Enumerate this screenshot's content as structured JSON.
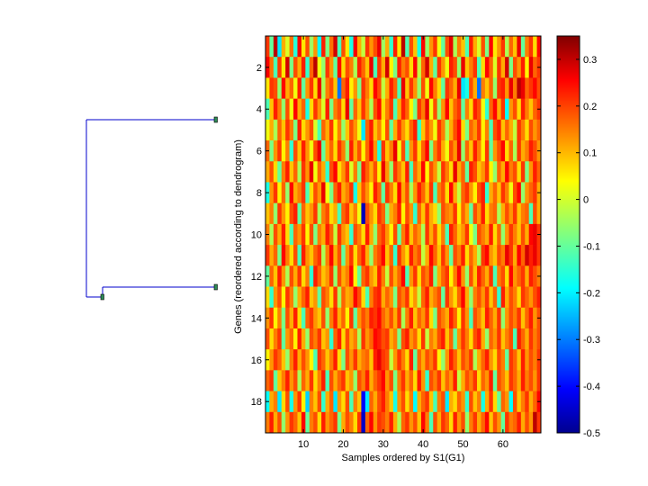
{
  "chart_data": {
    "type": "heatmap",
    "title": "",
    "xlabel": "Samples ordered by S1(G1)",
    "ylabel": "Genes (reordered according to dendrogram)",
    "n_cols": 69,
    "n_rows": 19,
    "xlim": [
      0.5,
      69.5
    ],
    "ylim": [
      0.5,
      19.5
    ],
    "xticks": [
      10,
      20,
      30,
      40,
      50,
      60
    ],
    "yticks": [
      2,
      4,
      6,
      8,
      10,
      12,
      14,
      16,
      18
    ],
    "colormap": "jet",
    "colorbar": {
      "range": [
        -0.5,
        0.35
      ],
      "ticks": [
        0.3,
        0.2,
        0.1,
        0,
        -0.1,
        -0.2,
        -0.3,
        -0.4,
        -0.5
      ]
    },
    "values": [
      [
        0.2,
        -0.1,
        0.3,
        -0.2,
        0.1,
        0.0,
        0.15,
        -0.15,
        0.25,
        0.05,
        0.18,
        -0.05,
        0.12,
        -0.18,
        0.22,
        -0.08,
        0.15,
        0.28,
        -0.12,
        0.18,
        0.05,
        -0.16,
        0.25,
        0.1,
        -0.02,
        0.2,
        0.12,
        0.18,
        0.26,
        -0.05,
        0.1,
        -0.14,
        0.22,
        0.05,
        0.3,
        -0.12,
        0.18,
        0.08,
        -0.16,
        0.24,
        -0.06,
        0.12,
        0.2,
        0.02,
        -0.1,
        0.18,
        0.26,
        -0.04,
        0.14,
        0.08,
        -0.12,
        0.22,
        0.1,
        0.0,
        0.18,
        -0.08,
        0.24,
        0.05,
        0.12,
        0.2,
        -0.04,
        0.16,
        0.08,
        0.26,
        -0.1,
        0.14,
        0.2,
        0.06,
        0.24
      ],
      [
        0.25,
        0.15,
        -0.12,
        0.2,
        0.05,
        0.28,
        -0.08,
        0.18,
        0.1,
        0.22,
        -0.14,
        0.16,
        0.3,
        0.02,
        -0.06,
        0.2,
        0.12,
        -0.1,
        0.24,
        0.06,
        0.18,
        0.14,
        -0.04,
        0.22,
        0.16,
        0.08,
        0.26,
        -0.12,
        0.2,
        0.1,
        0.28,
        0.04,
        -0.08,
        0.22,
        0.14,
        0.18,
        0.06,
        0.24,
        -0.02,
        0.16,
        0.28,
        0.1,
        -0.1,
        0.2,
        0.12,
        0.02,
        0.22,
        0.18,
        -0.06,
        0.26,
        0.08,
        0.14,
        0.2,
        -0.12,
        0.06,
        0.24,
        0.16,
        0.0,
        0.2,
        0.1,
        0.28,
        -0.08,
        0.18,
        0.12,
        0.22,
        0.04,
        0.26,
        0.16,
        0.2
      ],
      [
        0.05,
        0.2,
        0.18,
        -0.06,
        0.24,
        0.1,
        0.16,
        0.02,
        0.22,
        -0.1,
        0.12,
        0.2,
        0.06,
        0.26,
        -0.04,
        0.14,
        0.18,
        0.08,
        -0.3,
        0.16,
        0.22,
        0.04,
        0.12,
        -0.08,
        0.2,
        0.14,
        0.06,
        0.24,
        0.18,
        -0.02,
        0.1,
        0.22,
        0.16,
        -0.12,
        0.26,
        0.08,
        0.2,
        0.12,
        -0.06,
        0.18,
        0.02,
        0.24,
        0.14,
        0.06,
        -0.1,
        0.2,
        0.16,
        0.1,
        0.26,
        -0.2,
        -0.16,
        0.18,
        0.1,
        -0.3,
        0.14,
        0.08,
        0.16,
        -0.06,
        0.2,
        0.22,
        0.12,
        0.26,
        0.14,
        0.3,
        0.26,
        0.16,
        0.2,
        0.24,
        0.18
      ],
      [
        -0.12,
        0.08,
        0.22,
        0.14,
        -0.06,
        0.18,
        0.02,
        0.24,
        0.1,
        0.16,
        -0.16,
        0.06,
        0.2,
        0.12,
        0.0,
        0.22,
        -0.08,
        0.14,
        0.18,
        0.06,
        0.26,
        -0.1,
        0.16,
        0.08,
        0.2,
        0.12,
        -0.04,
        0.18,
        0.24,
        0.06,
        0.14,
        0.2,
        -0.12,
        0.1,
        0.22,
        0.16,
        0.04,
        -0.08,
        0.2,
        0.14,
        0.26,
        0.02,
        0.18,
        -0.06,
        0.12,
        0.24,
        0.08,
        0.16,
        0.2,
        -0.1,
        0.14,
        0.06,
        0.22,
        0.18,
        0.02,
        -0.14,
        0.16,
        0.24,
        0.1,
        0.2,
        -0.18,
        0.12,
        0.18,
        0.06,
        0.22,
        0.14,
        0.08,
        0.16,
        0.2
      ],
      [
        0.02,
        0.1,
        -0.04,
        0.16,
        0.08,
        0.2,
        0.14,
        -0.08,
        0.22,
        0.06,
        0.12,
        0.18,
        0.0,
        -0.12,
        0.16,
        0.1,
        0.2,
        0.04,
        0.14,
        -0.06,
        0.08,
        0.18,
        0.12,
        0.02,
        -0.2,
        0.16,
        0.22,
        0.08,
        0.14,
        0.04,
        0.18,
        -0.1,
        0.1,
        0.2,
        0.12,
        0.06,
        0.16,
        0.22,
        -0.14,
        0.08,
        0.18,
        0.12,
        0.02,
        0.2,
        0.14,
        -0.04,
        0.1,
        0.18,
        0.24,
        0.06,
        -0.08,
        0.16,
        0.12,
        0.2,
        0.04,
        0.14,
        -0.12,
        0.18,
        0.22,
        0.08,
        0.16,
        0.1,
        -0.02,
        0.2,
        0.14,
        0.06,
        0.18,
        0.12,
        0.16
      ],
      [
        0.16,
        -0.08,
        0.12,
        0.2,
        0.04,
        0.14,
        -0.14,
        0.18,
        0.08,
        0.22,
        0.12,
        0.02,
        0.18,
        0.26,
        -0.1,
        0.1,
        0.16,
        0.06,
        0.2,
        0.14,
        -0.06,
        0.22,
        0.1,
        0.18,
        0.04,
        0.16,
        0.24,
        0.12,
        -0.16,
        0.2,
        0.08,
        0.14,
        0.26,
        0.02,
        0.18,
        -0.12,
        0.12,
        0.2,
        0.06,
        0.16,
        0.24,
        -0.08,
        0.14,
        0.2,
        0.1,
        0.02,
        0.18,
        0.12,
        0.26,
        -0.06,
        0.16,
        0.08,
        0.22,
        0.14,
        0.04,
        0.2,
        -0.1,
        0.12,
        0.18,
        0.24,
        0.06,
        0.16,
        -0.04,
        0.2,
        0.1,
        0.14,
        0.22,
        0.18,
        0.12
      ],
      [
        0.1,
        0.18,
        0.06,
        -0.1,
        0.14,
        0.22,
        0.08,
        0.16,
        -0.04,
        0.2,
        0.12,
        0.26,
        0.02,
        0.16,
        0.1,
        -0.14,
        0.18,
        0.24,
        0.06,
        0.12,
        0.2,
        0.0,
        0.14,
        -0.08,
        0.22,
        0.16,
        0.1,
        0.18,
        0.04,
        0.26,
        0.12,
        -0.06,
        0.2,
        0.14,
        0.08,
        0.22,
        -0.12,
        0.16,
        0.1,
        0.24,
        0.04,
        0.18,
        0.12,
        -0.02,
        0.2,
        0.14,
        0.06,
        0.26,
        0.1,
        0.16,
        -0.1,
        0.22,
        0.18,
        0.08,
        0.12,
        0.2,
        0.04,
        -0.06,
        0.16,
        0.1,
        0.24,
        0.14,
        0.18,
        0.06,
        0.2,
        -0.08,
        0.12,
        0.22,
        0.16
      ],
      [
        -0.16,
        0.12,
        0.2,
        0.04,
        0.16,
        -0.06,
        0.24,
        0.1,
        0.14,
        0.2,
        -0.12,
        0.06,
        0.18,
        0.12,
        0.26,
        0.02,
        -0.08,
        0.16,
        0.22,
        0.1,
        0.14,
        0.2,
        -0.16,
        0.08,
        0.18,
        0.12,
        0.04,
        0.22,
        0.16,
        -0.1,
        0.2,
        0.14,
        0.06,
        0.24,
        0.1,
        0.18,
        -0.04,
        0.12,
        0.22,
        0.16,
        0.08,
        0.2,
        -0.12,
        0.14,
        0.18,
        0.06,
        0.24,
        0.1,
        -0.02,
        0.16,
        0.2,
        0.12,
        0.04,
        0.18,
        0.22,
        -0.14,
        0.1,
        0.16,
        0.08,
        0.2,
        0.14,
        0.02,
        0.18,
        0.24,
        -0.06,
        0.12,
        0.16,
        0.2,
        0.1
      ],
      [
        0.08,
        0.14,
        -0.06,
        0.2,
        0.12,
        0.04,
        0.18,
        0.22,
        -0.1,
        0.16,
        0.08,
        0.12,
        0.2,
        -0.04,
        0.14,
        0.18,
        0.06,
        0.1,
        -0.12,
        0.16,
        0.2,
        0.08,
        0.14,
        0.02,
        -0.45,
        0.18,
        0.12,
        0.06,
        0.2,
        0.16,
        -0.08,
        0.1,
        0.14,
        0.22,
        0.04,
        0.18,
        0.12,
        -0.14,
        0.16,
        0.08,
        0.2,
        0.1,
        0.06,
        -0.06,
        0.18,
        0.14,
        0.12,
        0.2,
        0.04,
        0.16,
        0.1,
        -0.1,
        0.18,
        0.12,
        0.22,
        0.06,
        0.14,
        0.16,
        -0.04,
        0.1,
        0.18,
        0.12,
        0.2,
        0.08,
        0.14,
        0.16,
        -0.12,
        0.18,
        0.1
      ],
      [
        0.14,
        -0.04,
        0.18,
        0.1,
        0.22,
        0.06,
        -0.12,
        0.16,
        0.12,
        0.2,
        0.04,
        0.18,
        -0.08,
        0.14,
        0.1,
        0.22,
        0.16,
        -0.02,
        0.2,
        0.12,
        0.08,
        -0.14,
        0.18,
        0.14,
        0.06,
        0.22,
        0.1,
        -0.06,
        0.16,
        0.2,
        0.12,
        0.04,
        0.18,
        -0.1,
        0.14,
        0.22,
        0.08,
        0.16,
        0.12,
        -0.04,
        0.2,
        0.1,
        0.18,
        0.06,
        0.14,
        -0.12,
        0.22,
        0.16,
        0.08,
        0.12,
        0.2,
        0.02,
        -0.08,
        0.18,
        0.14,
        0.1,
        0.22,
        0.06,
        0.16,
        -0.06,
        0.12,
        0.2,
        0.14,
        0.08,
        0.18,
        0.1,
        0.24,
        0.26,
        0.2
      ],
      [
        0.2,
        0.1,
        0.16,
        -0.08,
        0.24,
        0.14,
        0.06,
        0.18,
        -0.12,
        0.22,
        0.12,
        0.08,
        0.16,
        0.2,
        -0.04,
        0.14,
        0.24,
        0.1,
        0.18,
        -0.1,
        0.12,
        0.2,
        0.06,
        0.16,
        0.22,
        0.1,
        -0.06,
        0.14,
        0.18,
        0.24,
        0.08,
        0.16,
        -0.14,
        0.2,
        0.12,
        0.06,
        0.22,
        0.14,
        0.18,
        -0.02,
        0.1,
        0.24,
        0.16,
        0.08,
        0.2,
        0.12,
        -0.1,
        0.18,
        0.14,
        0.22,
        0.06,
        0.16,
        0.1,
        -0.04,
        0.2,
        0.24,
        0.12,
        0.08,
        0.18,
        0.14,
        0.26,
        0.2,
        0.1,
        0.24,
        0.16,
        0.28,
        0.22,
        0.26,
        0.2
      ],
      [
        -0.1,
        0.16,
        0.08,
        0.22,
        0.12,
        -0.04,
        0.18,
        0.1,
        0.2,
        0.06,
        0.14,
        -0.14,
        0.22,
        0.16,
        0.08,
        0.12,
        0.2,
        -0.06,
        0.18,
        0.1,
        0.14,
        0.24,
        0.04,
        -0.1,
        0.16,
        0.2,
        0.12,
        0.08,
        0.22,
        0.14,
        -0.02,
        0.18,
        0.1,
        0.16,
        0.24,
        -0.12,
        0.12,
        0.2,
        0.06,
        0.18,
        0.14,
        0.22,
        -0.08,
        0.1,
        0.16,
        0.2,
        0.04,
        0.14,
        0.24,
        0.12,
        -0.06,
        0.18,
        0.08,
        0.22,
        0.16,
        0.1,
        0.2,
        -0.12,
        0.14,
        0.18,
        0.06,
        0.24,
        0.12,
        0.16,
        0.2,
        0.1,
        0.22,
        0.18,
        0.14
      ],
      [
        0.06,
        -0.14,
        0.12,
        0.18,
        0.04,
        0.2,
        0.14,
        -0.06,
        0.1,
        0.16,
        0.22,
        0.08,
        0.12,
        -0.1,
        0.18,
        0.14,
        0.06,
        0.2,
        -0.04,
        0.16,
        0.1,
        0.12,
        0.24,
        0.18,
        0.06,
        -0.12,
        0.14,
        0.2,
        0.22,
        0.1,
        0.16,
        0.12,
        -0.08,
        0.18,
        0.14,
        0.2,
        0.06,
        0.12,
        -0.02,
        0.16,
        0.22,
        0.1,
        0.14,
        0.18,
        -0.1,
        0.2,
        0.12,
        0.06,
        0.16,
        0.24,
        0.1,
        -0.06,
        0.14,
        0.18,
        0.12,
        0.2,
        0.08,
        0.16,
        -0.14,
        0.22,
        0.1,
        0.18,
        0.14,
        0.06,
        0.2,
        0.16,
        0.12,
        0.18,
        0.22
      ],
      [
        0.12,
        0.2,
        0.04,
        0.14,
        -0.08,
        0.18,
        0.1,
        0.22,
        0.06,
        -0.12,
        0.16,
        0.2,
        0.12,
        0.08,
        0.18,
        -0.06,
        0.14,
        0.22,
        0.1,
        0.16,
        0.04,
        0.2,
        -0.1,
        0.12,
        0.18,
        0.14,
        0.22,
        0.2,
        0.24,
        0.16,
        0.12,
        0.18,
        0.1,
        0.2,
        -0.04,
        0.14,
        0.22,
        0.08,
        0.16,
        0.12,
        0.2,
        0.06,
        -0.08,
        0.18,
        0.14,
        0.1,
        0.22,
        0.16,
        0.04,
        0.2,
        0.12,
        -0.12,
        0.18,
        0.14,
        0.08,
        0.22,
        0.16,
        0.1,
        0.2,
        -0.06,
        0.12,
        0.18,
        0.14,
        0.2,
        0.08,
        0.16,
        0.22,
        0.12,
        0.18
      ],
      [
        0.18,
        0.06,
        0.14,
        0.2,
        -0.1,
        0.12,
        0.16,
        0.04,
        0.22,
        0.1,
        -0.06,
        0.18,
        0.14,
        0.2,
        0.08,
        0.12,
        -0.14,
        0.16,
        0.22,
        0.06,
        0.18,
        0.1,
        0.14,
        -0.04,
        0.2,
        0.12,
        0.16,
        0.24,
        0.22,
        0.18,
        0.2,
        0.1,
        0.14,
        -0.08,
        0.18,
        0.22,
        0.12,
        0.16,
        0.06,
        0.2,
        -0.02,
        0.14,
        0.1,
        0.18,
        0.22,
        0.08,
        0.16,
        -0.1,
        0.12,
        0.2,
        0.14,
        0.06,
        0.18,
        0.22,
        0.1,
        -0.06,
        0.16,
        0.12,
        0.2,
        0.08,
        0.14,
        0.18,
        -0.12,
        0.22,
        0.16,
        0.1,
        0.2,
        0.14,
        0.18
      ],
      [
        0.04,
        0.12,
        0.2,
        0.16,
        0.08,
        -0.06,
        0.14,
        0.22,
        0.1,
        0.18,
        0.12,
        0.04,
        -0.12,
        0.2,
        0.16,
        0.08,
        0.14,
        0.22,
        0.06,
        -0.08,
        0.18,
        0.12,
        0.2,
        0.1,
        0.14,
        0.16,
        0.08,
        0.22,
        0.26,
        0.2,
        0.18,
        -0.02,
        0.12,
        0.2,
        0.14,
        0.06,
        0.22,
        -0.1,
        0.16,
        0.1,
        0.18,
        0.14,
        0.2,
        0.04,
        -0.06,
        0.12,
        0.22,
        0.16,
        0.08,
        0.18,
        0.14,
        0.2,
        -0.04,
        0.1,
        0.16,
        0.22,
        0.12,
        0.06,
        0.18,
        0.14,
        -0.1,
        0.2,
        0.16,
        0.08,
        0.22,
        0.12,
        0.18,
        0.14,
        0.2
      ],
      [
        0.16,
        0.2,
        -0.1,
        0.08,
        0.14,
        0.22,
        0.12,
        0.18,
        -0.04,
        0.16,
        0.1,
        0.2,
        0.06,
        0.14,
        0.22,
        -0.12,
        0.18,
        0.1,
        0.16,
        0.2,
        0.08,
        0.12,
        -0.06,
        0.18,
        0.14,
        0.22,
        0.1,
        0.16,
        0.2,
        0.24,
        0.12,
        0.18,
        -0.08,
        0.14,
        0.2,
        0.1,
        0.16,
        0.06,
        0.22,
        0.12,
        -0.14,
        0.18,
        0.14,
        0.2,
        0.08,
        0.16,
        0.12,
        0.22,
        -0.02,
        0.1,
        0.18,
        0.14,
        0.2,
        0.06,
        0.16,
        0.12,
        0.22,
        -0.1,
        0.18,
        0.14,
        0.08,
        0.2,
        0.16,
        0.1,
        0.22,
        0.14,
        0.18,
        0.12,
        0.2
      ],
      [
        -0.18,
        0.1,
        0.14,
        -0.2,
        0.06,
        0.18,
        -0.16,
        0.12,
        0.2,
        0.04,
        -0.22,
        0.14,
        0.08,
        0.18,
        -0.14,
        0.1,
        0.16,
        -0.2,
        0.12,
        0.06,
        0.18,
        -0.12,
        0.14,
        0.08,
        -0.4,
        -0.2,
        0.16,
        0.1,
        0.18,
        0.22,
        0.14,
        0.08,
        -0.16,
        0.12,
        0.18,
        0.06,
        0.14,
        -0.18,
        0.1,
        0.16,
        0.2,
        0.08,
        -0.12,
        0.14,
        0.18,
        -0.2,
        0.1,
        0.06,
        0.16,
        0.12,
        -0.14,
        0.18,
        0.08,
        0.14,
        -0.16,
        0.1,
        0.2,
        0.06,
        -0.1,
        0.16,
        0.12,
        -0.18,
        0.18,
        0.08,
        0.14,
        0.2,
        0.1,
        0.16,
        0.24
      ],
      [
        0.14,
        0.22,
        0.1,
        0.18,
        -0.06,
        0.12,
        0.2,
        0.16,
        0.08,
        0.24,
        -0.1,
        0.14,
        0.18,
        0.06,
        0.22,
        0.12,
        0.16,
        0.2,
        -0.08,
        0.1,
        0.18,
        0.14,
        0.06,
        0.2,
        -0.44,
        0.16,
        0.24,
        0.12,
        0.2,
        0.18,
        0.14,
        0.22,
        0.1,
        -0.04,
        0.16,
        0.2,
        0.12,
        0.18,
        0.08,
        0.24,
        0.14,
        -0.12,
        0.18,
        0.1,
        0.2,
        0.16,
        0.06,
        0.22,
        0.12,
        0.18,
        -0.06,
        0.14,
        0.2,
        0.1,
        0.16,
        0.24,
        0.08,
        0.18,
        0.12,
        -0.1,
        0.2,
        0.14,
        0.16,
        0.22,
        0.1,
        0.18,
        0.12,
        0.3,
        0.2
      ]
    ]
  }
}
